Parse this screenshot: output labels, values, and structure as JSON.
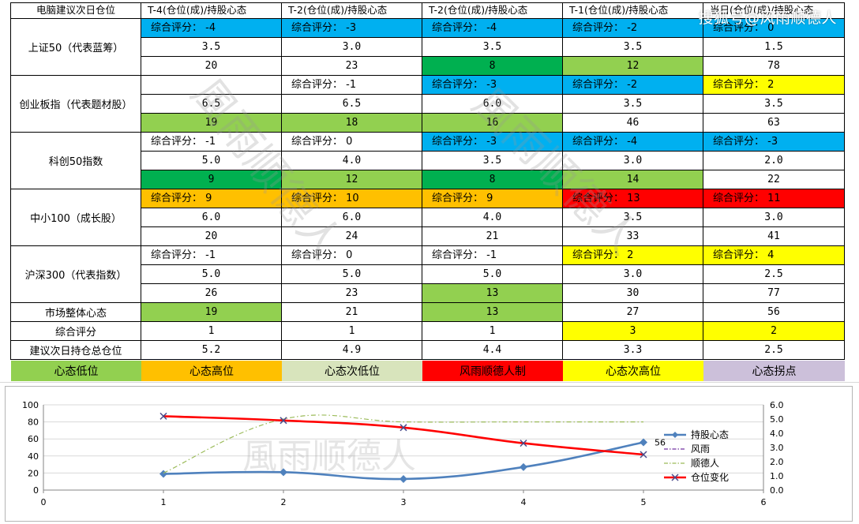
{
  "table": {
    "corner_label": "电脑建议次日仓位",
    "columns": [
      "T-4(仓位(成)/持股心态",
      "T-2(仓位(成)/持股心态",
      "T-2(仓位(成)/持股心态",
      "T-1(仓位(成)/持股心态",
      "当日(仓位(成)/持股心态"
    ],
    "score_prefix": "综合评分：",
    "groups": [
      {
        "label": "上证50（代表蓝筹）",
        "scores": [
          "-4",
          "-3",
          "-4",
          "-2",
          "0"
        ],
        "score_colors": [
          "#00b0f0",
          "#00b0f0",
          "#00b0f0",
          "#00b0f0",
          "#00b0f0"
        ],
        "positions": [
          "3.5",
          "3.0",
          "3.5",
          "3.5",
          "1.5"
        ],
        "position_colors": [
          "",
          "",
          "",
          "",
          ""
        ],
        "sentiments": [
          "20",
          "23",
          "8",
          "12",
          "78"
        ],
        "sentiment_colors": [
          "",
          "",
          "#00b050",
          "#92d050",
          ""
        ]
      },
      {
        "label": "创业板指（代表题材股）",
        "scores": [
          "",
          "-1",
          "-3",
          "-2",
          "2"
        ],
        "score_colors": [
          "",
          "",
          "#00b0f0",
          "#00b0f0",
          "#ffff00"
        ],
        "positions": [
          "6.5",
          "6.5",
          "6.0",
          "3.5",
          "3.5"
        ],
        "position_colors": [
          "",
          "",
          "",
          "",
          ""
        ],
        "sentiments": [
          "19",
          "18",
          "16",
          "46",
          "63"
        ],
        "sentiment_colors": [
          "#92d050",
          "#92d050",
          "#92d050",
          "",
          ""
        ]
      },
      {
        "label": "科创50指数",
        "scores": [
          "-1",
          "0",
          "-3",
          "-4",
          "-3"
        ],
        "score_colors": [
          "",
          "",
          "#00b0f0",
          "#00b0f0",
          "#00b0f0"
        ],
        "positions": [
          "5.0",
          "4.0",
          "3.5",
          "3.0",
          "2.0"
        ],
        "position_colors": [
          "",
          "",
          "",
          "",
          ""
        ],
        "sentiments": [
          "9",
          "12",
          "8",
          "14",
          "22"
        ],
        "sentiment_colors": [
          "#00b050",
          "#92d050",
          "#00b050",
          "#92d050",
          ""
        ]
      },
      {
        "label": "中小100（成长股）",
        "scores": [
          "9",
          "10",
          "9",
          "13",
          "11"
        ],
        "score_colors": [
          "#ffc000",
          "#ffc000",
          "#ffc000",
          "#ff0000",
          "#ff0000"
        ],
        "positions": [
          "6.0",
          "6.0",
          "4.0",
          "3.5",
          "3.0"
        ],
        "position_colors": [
          "",
          "",
          "",
          "",
          ""
        ],
        "sentiments": [
          "20",
          "24",
          "21",
          "33",
          "41"
        ],
        "sentiment_colors": [
          "",
          "",
          "",
          "",
          ""
        ]
      },
      {
        "label": "沪深300（代表指数）",
        "scores": [
          "-1",
          "0",
          "-1",
          "2",
          "4"
        ],
        "score_colors": [
          "",
          "",
          "",
          "#ffff00",
          "#ffff00"
        ],
        "positions": [
          "5.0",
          "5.0",
          "5.0",
          "3.0",
          "2.5"
        ],
        "position_colors": [
          "",
          "",
          "",
          "",
          ""
        ],
        "sentiments": [
          "26",
          "23",
          "13",
          "30",
          "77"
        ],
        "sentiment_colors": [
          "",
          "",
          "#92d050",
          "",
          ""
        ]
      }
    ],
    "summary_rows": [
      {
        "label": "市场整体心态",
        "values": [
          "19",
          "21",
          "13",
          "27",
          "56"
        ],
        "colors": [
          "#92d050",
          "",
          "#92d050",
          "",
          ""
        ]
      },
      {
        "label": "综合评分",
        "values": [
          "1",
          "1",
          "1",
          "3",
          "2"
        ],
        "colors": [
          "",
          "",
          "",
          "#ffff00",
          "#ffff00"
        ]
      },
      {
        "label": "建议次日持仓总仓位",
        "values": [
          "5.2",
          "4.9",
          "4.4",
          "3.3",
          "2.5"
        ],
        "colors": [
          "",
          "",
          "",
          "",
          ""
        ]
      }
    ],
    "color_legend": [
      {
        "label": "心态低位",
        "color": "#92d050",
        "text_color": "#000000"
      },
      {
        "label": "心态高位",
        "color": "#ffc000",
        "text_color": "#000000"
      },
      {
        "label": "心态次低位",
        "color": "#d8e4bc",
        "text_color": "#000000"
      },
      {
        "label": "风雨顺德人制",
        "color": "#ff0000",
        "text_color": "#000000"
      },
      {
        "label": "心态次高位",
        "color": "#ffff00",
        "text_color": "#000000"
      },
      {
        "label": "心态拐点",
        "color": "#ccc0da",
        "text_color": "#000000"
      }
    ]
  },
  "watermarks": {
    "top_right": "搜狐号@风雨顺德人",
    "diagonal_a": "風雨顺德人",
    "diagonal_b": "風雨顺德人",
    "chart": "風雨顺德人"
  },
  "chart_data": {
    "type": "line",
    "x": [
      1,
      2,
      3,
      4,
      5
    ],
    "xlim": [
      0,
      6
    ],
    "xticks": [
      0,
      1,
      2,
      3,
      4,
      5,
      6
    ],
    "ylim_left": [
      0,
      100
    ],
    "yticks_left": [
      0,
      20,
      40,
      60,
      80,
      100
    ],
    "ylim_right": [
      0,
      6
    ],
    "yticks_right": [
      "0.0",
      "1.0",
      "2.0",
      "3.0",
      "4.0",
      "5.0",
      "6.0"
    ],
    "grid": true,
    "legend_position": "right",
    "series": [
      {
        "name": "持股心态",
        "axis": "left",
        "values": [
          19,
          21,
          13,
          27,
          56
        ],
        "color": "#4f81bd",
        "marker": "diamond",
        "line": "solid",
        "label_last": "56"
      },
      {
        "name": "风雨",
        "axis": "right",
        "values": [
          null,
          null,
          null,
          null,
          null
        ],
        "color": "#7030a0",
        "marker": "none",
        "line": "dashdot"
      },
      {
        "name": "顺德人",
        "axis": "right",
        "values": [
          1.2,
          5.0,
          4.8,
          4.8,
          4.8
        ],
        "color": "#9bbb59",
        "marker": "none",
        "line": "dashdot"
      },
      {
        "name": "仓位变化",
        "axis": "right",
        "values": [
          5.2,
          4.9,
          4.4,
          3.3,
          2.5
        ],
        "color": "#ff0000",
        "marker": "x",
        "line": "solid"
      }
    ]
  }
}
